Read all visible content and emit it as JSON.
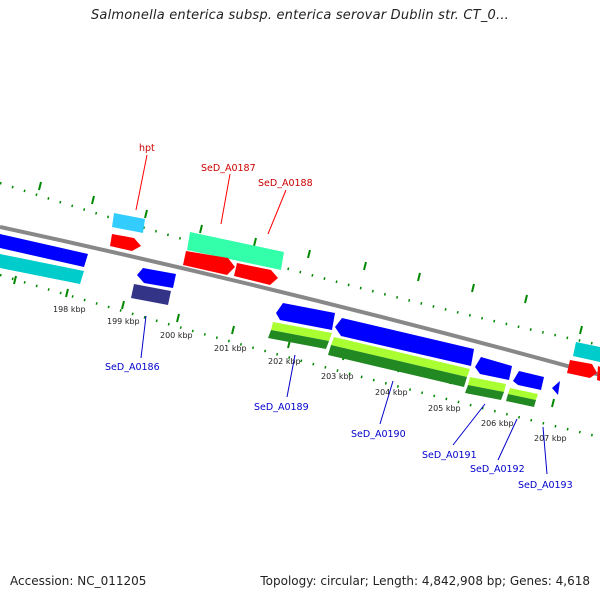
{
  "title": "Salmonella enterica subsp. enterica serovar Dublin str. CT_0...",
  "footer": {
    "accession": "Accession: NC_011205",
    "topology": "Topology: circular; Length: 4,842,908 bp; Genes: 4,618"
  },
  "colors": {
    "red": "#ff0000",
    "blue": "#0000ff",
    "cyan": "#00cccc",
    "sky": "#33ccff",
    "aqua_green": "#33ffaa",
    "navy": "#333388",
    "green_dark": "#228822",
    "green_light": "#aaff33",
    "grid": "#008800",
    "backbone": "#888888"
  },
  "kbp_labels": [
    "198 kbp",
    "199 kbp",
    "200 kbp",
    "201 kbp",
    "202 kbp",
    "203 kbp",
    "204 kbp",
    "205 kbp",
    "206 kbp",
    "207 kbp"
  ],
  "gene_labels_forward": [
    "hpt",
    "SeD_A0187",
    "SeD_A0188"
  ],
  "gene_labels_reverse": [
    "SeD_A0186",
    "SeD_A0189",
    "SeD_A0190",
    "SeD_A0191",
    "SeD_A0192",
    "SeD_A0193"
  ]
}
